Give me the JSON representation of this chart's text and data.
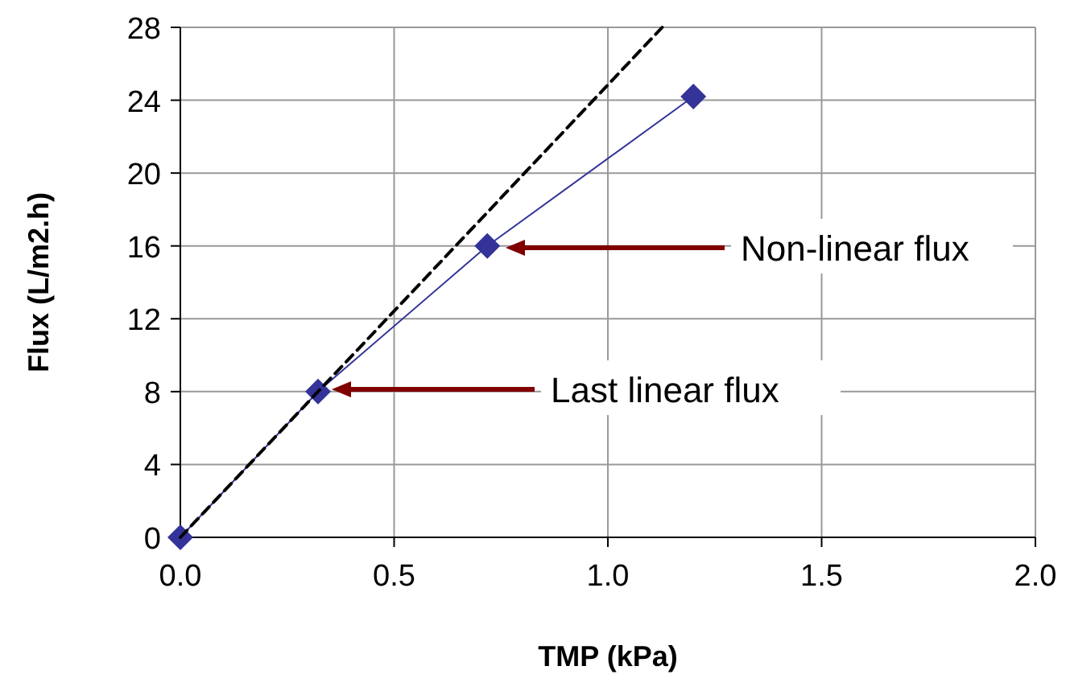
{
  "chart_data": {
    "type": "line",
    "xlabel": "TMP (kPa)",
    "ylabel": "Flux (L/m2.h)",
    "xlim": [
      0,
      2
    ],
    "xticks": [
      {
        "value": 0,
        "label": "0.0"
      },
      {
        "value": 0.5,
        "label": "0.5"
      },
      {
        "value": 1,
        "label": "1.0"
      },
      {
        "value": 1.5,
        "label": "1.5"
      },
      {
        "value": 2,
        "label": "2.0"
      }
    ],
    "ylim": [
      0,
      28
    ],
    "yticks": [
      0,
      4,
      8,
      12,
      16,
      20,
      24,
      28
    ],
    "grid": true,
    "series": [
      {
        "color": "#333399",
        "marker": "diamond",
        "line_style": "solid",
        "x": [
          0,
          0.322,
          0.718,
          1.2
        ],
        "values": [
          0,
          8,
          16,
          24.2
        ]
      },
      {
        "color": "#000000",
        "marker": "none",
        "line_style": "dashed",
        "x": [
          0,
          1.127
        ],
        "values": [
          0,
          28
        ]
      }
    ],
    "annotations": [
      "Last linear flux",
      "Non-linear flux"
    ]
  }
}
